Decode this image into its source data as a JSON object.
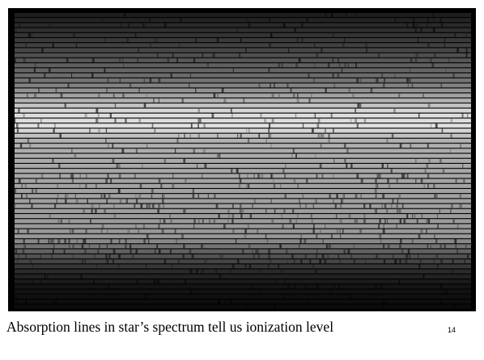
{
  "caption": "Absorption lines in star’s spectrum tell us ionization level",
  "page_number": "14"
}
